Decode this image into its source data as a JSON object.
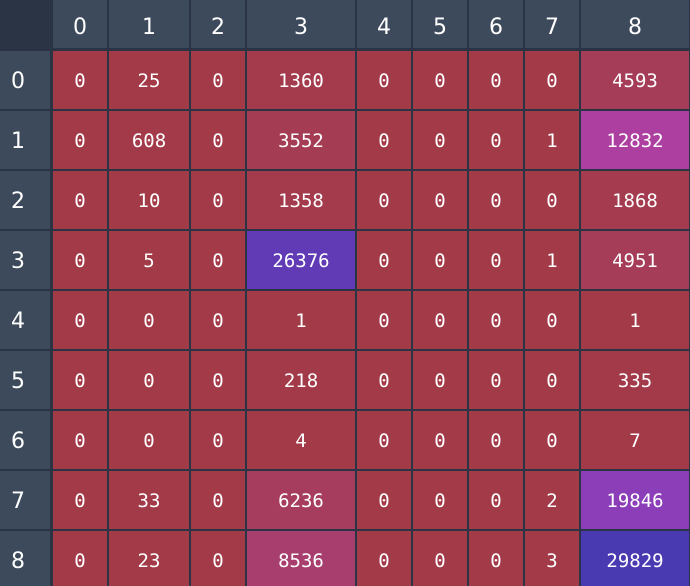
{
  "chart_data": {
    "type": "heatmap",
    "title": "",
    "xlabel": "",
    "ylabel": "",
    "x_categories": [
      "0",
      "1",
      "2",
      "3",
      "4",
      "5",
      "6",
      "7",
      "8"
    ],
    "y_categories": [
      "0",
      "1",
      "2",
      "3",
      "4",
      "5",
      "6",
      "7",
      "8"
    ],
    "values": [
      [
        0,
        25,
        0,
        1360,
        0,
        0,
        0,
        0,
        4593
      ],
      [
        0,
        608,
        0,
        3552,
        0,
        0,
        0,
        1,
        12832
      ],
      [
        0,
        10,
        0,
        1358,
        0,
        0,
        0,
        0,
        1868
      ],
      [
        0,
        5,
        0,
        26376,
        0,
        0,
        0,
        1,
        4951
      ],
      [
        0,
        0,
        0,
        1,
        0,
        0,
        0,
        0,
        1
      ],
      [
        0,
        0,
        0,
        218,
        0,
        0,
        0,
        0,
        335
      ],
      [
        0,
        0,
        0,
        4,
        0,
        0,
        0,
        0,
        7
      ],
      [
        0,
        33,
        0,
        6236,
        0,
        0,
        0,
        2,
        19846
      ],
      [
        0,
        23,
        0,
        8536,
        0,
        0,
        0,
        3,
        29829
      ]
    ],
    "colorscale": [
      "#a33a48",
      "#a63e62",
      "#b040b8",
      "#7a3cb8",
      "#4a3ab2"
    ],
    "header_color": "#3d4a5c",
    "background_color": "#2b3444",
    "grid": true,
    "legend": false
  }
}
